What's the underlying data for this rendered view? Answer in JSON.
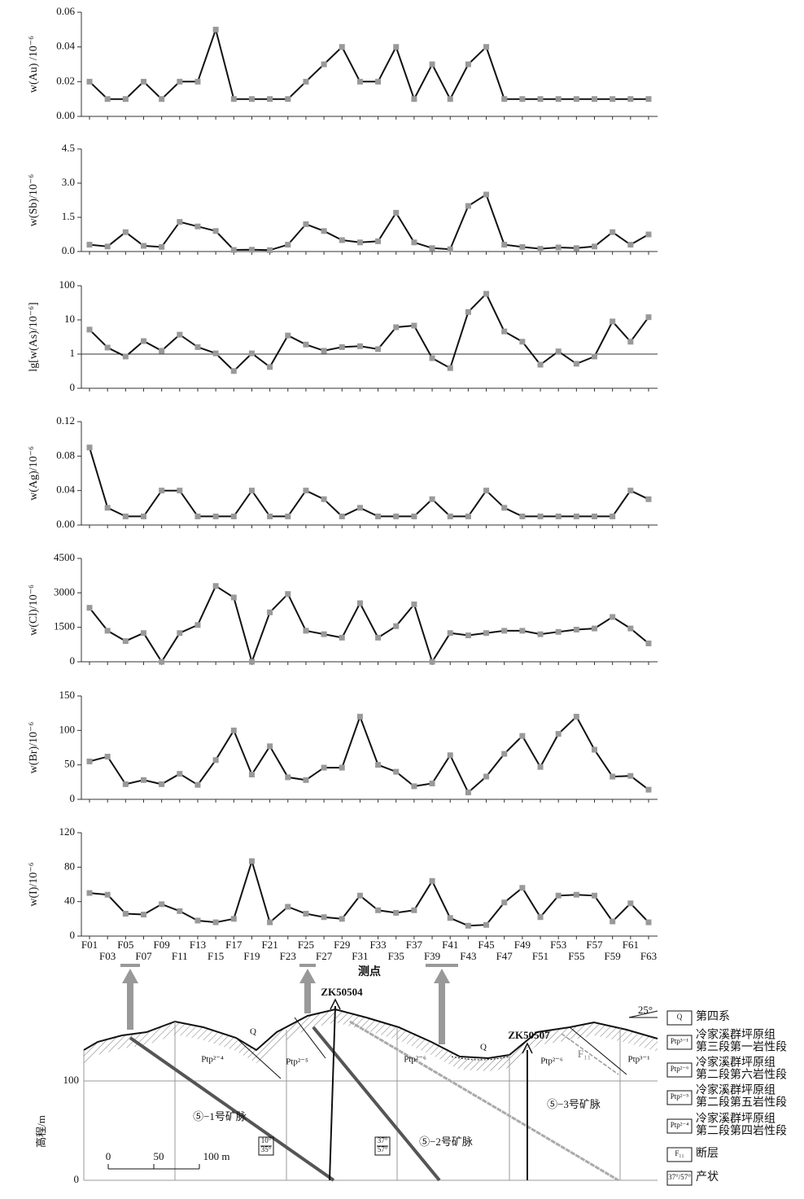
{
  "chart_data": [
    {
      "type": "line",
      "y_label": "w(Au) /10⁻⁶",
      "color": "#111111",
      "marker_color": "#999999",
      "values": [
        0.02,
        0.01,
        0.01,
        0.02,
        0.01,
        0.02,
        0.02,
        0.05,
        0.01,
        0.01,
        0.01,
        0.01,
        0.02,
        0.03,
        0.04,
        0.02,
        0.02,
        0.04,
        0.01,
        0.03,
        0.01,
        0.03,
        0.04,
        0.01,
        0.01,
        0.01,
        0.01,
        0.01,
        0.01,
        0.01,
        0.01,
        0.01
      ],
      "ylim": [
        0,
        0.06
      ],
      "yticks": [
        {
          "value": 0,
          "label": "0.00"
        },
        0.02,
        0.04,
        0.06
      ]
    },
    {
      "type": "line",
      "y_label": "w(Sb)/10⁻⁶",
      "color": "#111111",
      "marker_color": "#999999",
      "values": [
        0.3,
        0.22,
        0.85,
        0.25,
        0.2,
        1.3,
        1.1,
        0.9,
        0.07,
        0.08,
        0.06,
        0.3,
        1.2,
        0.9,
        0.5,
        0.4,
        0.45,
        1.7,
        0.4,
        0.15,
        0.1,
        2.0,
        2.5,
        0.3,
        0.2,
        0.12,
        0.18,
        0.15,
        0.22,
        0.85,
        0.3,
        0.75
      ],
      "ylim": [
        0,
        4.5
      ],
      "yticks": [
        {
          "value": 0,
          "label": "0.0"
        },
        1.5,
        {
          "value": 3,
          "label": "3.0"
        },
        4.5
      ]
    },
    {
      "type": "line",
      "y_label": "lg[w(As)/10⁻⁶]",
      "color": "#111111",
      "marker_color": "#999999",
      "log_scale": true,
      "baseline": 1,
      "values": [
        5.2,
        1.55,
        0.85,
        2.4,
        1.25,
        3.7,
        1.6,
        1.05,
        0.32,
        1.05,
        0.42,
        3.5,
        1.9,
        1.25,
        1.6,
        1.7,
        1.4,
        6.1,
        6.8,
        0.76,
        0.39,
        17,
        58,
        4.6,
        2.3,
        0.49,
        1.2,
        0.52,
        0.85,
        9,
        2.3,
        12
      ],
      "ylim": [
        0.1,
        100
      ],
      "yticks": [
        {
          "value": 0.1,
          "label": "0"
        },
        1,
        10,
        100
      ]
    },
    {
      "type": "line",
      "y_label": "w(Ag)/10⁻⁶",
      "color": "#111111",
      "marker_color": "#999999",
      "values": [
        0.09,
        0.02,
        0.01,
        0.01,
        0.04,
        0.04,
        0.01,
        0.01,
        0.01,
        0.04,
        0.01,
        0.01,
        0.04,
        0.03,
        0.01,
        0.02,
        0.01,
        0.01,
        0.01,
        0.03,
        0.01,
        0.01,
        0.04,
        0.02,
        0.01,
        0.01,
        0.01,
        0.01,
        0.01,
        0.01,
        0.04,
        0.03
      ],
      "ylim": [
        0,
        0.12
      ],
      "yticks": [
        {
          "value": 0,
          "label": "0.00"
        },
        0.04,
        0.08,
        0.12
      ]
    },
    {
      "type": "line",
      "y_label": "w(Cl)/10⁻⁶",
      "color": "#111111",
      "marker_color": "#999999",
      "values": [
        2350,
        1350,
        900,
        1250,
        0,
        1250,
        1600,
        3300,
        2800,
        0,
        2150,
        2950,
        1350,
        1200,
        1050,
        2550,
        1050,
        1550,
        2500,
        0,
        1250,
        1150,
        1250,
        1350,
        1350,
        1200,
        1300,
        1400,
        1450,
        1950,
        1450,
        800
      ],
      "ylim": [
        0,
        4500
      ],
      "yticks": [
        0,
        1500,
        3000,
        4500
      ]
    },
    {
      "type": "line",
      "y_label": "w(Br)/10⁻⁶",
      "color": "#111111",
      "marker_color": "#999999",
      "values": [
        55,
        62,
        22,
        28,
        22,
        37,
        21,
        57,
        100,
        36,
        77,
        32,
        28,
        46,
        46,
        120,
        50,
        40,
        19,
        23,
        64,
        10,
        33,
        66,
        92,
        47,
        95,
        120,
        72,
        33,
        34,
        14
      ],
      "ylim": [
        0,
        150
      ],
      "yticks": [
        0,
        50,
        100,
        150
      ]
    },
    {
      "type": "line",
      "y_label": "w(I)/10⁻⁶",
      "x_label": "测点",
      "color": "#111111",
      "marker_color": "#999999",
      "categories": [
        "F01",
        "F03",
        "F05",
        "F07",
        "F09",
        "F11",
        "F13",
        "F15",
        "F17",
        "F19",
        "F21",
        "F23",
        "F25",
        "F27",
        "F29",
        "F31",
        "F33",
        "F35",
        "F37",
        "F39",
        "F41",
        "F43",
        "F45",
        "F47",
        "F49",
        "F51",
        "F53",
        "F55",
        "F57",
        "F59",
        "F61",
        "F63"
      ],
      "values": [
        50,
        48,
        26,
        25,
        37,
        29,
        18,
        16,
        20,
        87,
        16,
        34,
        26,
        22,
        20,
        47,
        30,
        27,
        30,
        64,
        21,
        12,
        13,
        39,
        56,
        22,
        47,
        48,
        47,
        17,
        38,
        16
      ],
      "ylim": [
        0,
        120
      ],
      "yticks": [
        0,
        40,
        80,
        120
      ]
    }
  ],
  "section": {
    "drills": [
      "ZK50504",
      "ZK50507"
    ],
    "veins": [
      "⑤−1号矿脉",
      "⑤−2号矿脉",
      "⑤−3号矿脉"
    ],
    "units": [
      "Ptp²⁻⁴",
      "Ptp²⁻⁵",
      "Ptp²⁻⁶",
      "Ptp²⁻⁶",
      "Ptp³⁻¹"
    ],
    "quaternary": [
      "Q",
      "Q"
    ],
    "fault": "F₁₁",
    "attitudes": [
      [
        "10°",
        "35°"
      ],
      [
        "37°",
        "57°"
      ]
    ],
    "y_axis_label": "高程/m",
    "elevation_ticks": [
      "100",
      "0"
    ],
    "scale": [
      "0",
      "50",
      "100 m"
    ],
    "orientation": "25°",
    "legend": [
      {
        "symbol": "Q",
        "label": [
          "第四系"
        ]
      },
      {
        "symbol": "Ptp³⁻¹",
        "label": [
          "冷家溪群坪原组",
          "第三段第一岩性段"
        ]
      },
      {
        "symbol": "Ptp²⁻⁶",
        "label": [
          "冷家溪群坪原组",
          "第二段第六岩性段"
        ]
      },
      {
        "symbol": "Ptp²⁻⁵",
        "label": [
          "冷家溪群坪原组",
          "第二段第五岩性段"
        ]
      },
      {
        "symbol": "Ptp²⁻⁴",
        "label": [
          "冷家溪群坪原组",
          "第二段第四岩性段"
        ]
      },
      {
        "symbol": "F₁₁",
        "label": [
          "断层"
        ]
      },
      {
        "symbol": "37°/57°",
        "label": [
          "产状"
        ]
      }
    ]
  }
}
